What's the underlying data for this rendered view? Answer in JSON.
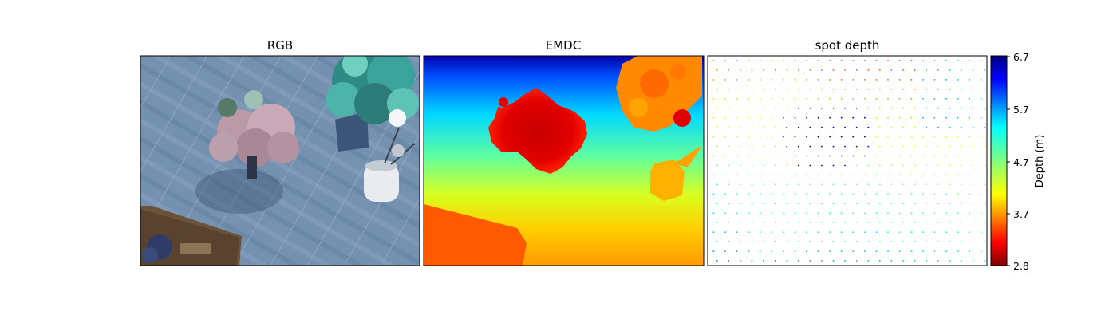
{
  "panels": [
    {
      "title": "RGB"
    },
    {
      "title": "EMDC"
    },
    {
      "title": "spot depth"
    }
  ],
  "colorbar": {
    "label": "Depth (m)",
    "ticks": [
      "6.7",
      "5.7",
      "4.7",
      "3.7",
      "2.8"
    ],
    "colormap": "jet",
    "range": [
      2.8,
      6.7
    ]
  }
}
